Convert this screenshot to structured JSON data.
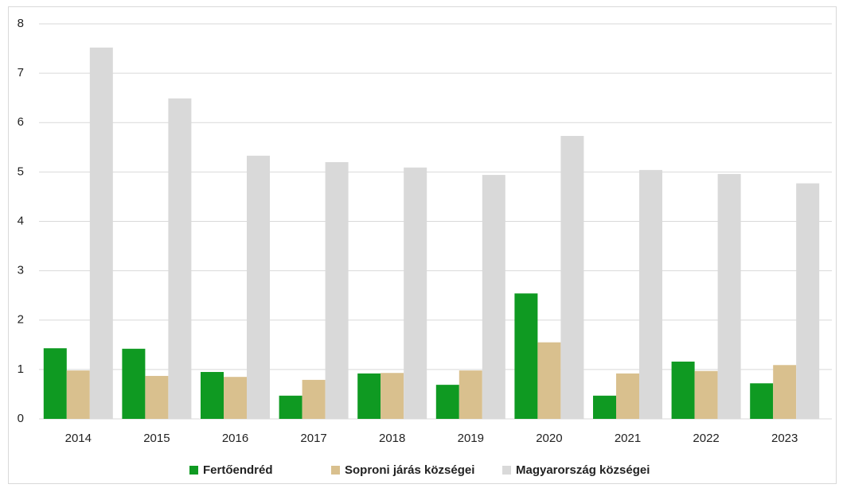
{
  "chart_data": {
    "type": "bar",
    "categories": [
      "2014",
      "2015",
      "2016",
      "2017",
      "2018",
      "2019",
      "2020",
      "2021",
      "2022",
      "2023"
    ],
    "series": [
      {
        "name": "Fertőendréd",
        "color": "#0f9a22",
        "values": [
          1.43,
          1.42,
          0.95,
          0.47,
          0.92,
          0.69,
          2.54,
          0.47,
          1.16,
          0.72
        ]
      },
      {
        "name": "Soproni járás községei",
        "color": "#d9c08e",
        "values": [
          0.98,
          0.87,
          0.85,
          0.79,
          0.93,
          0.98,
          1.55,
          0.92,
          0.97,
          1.09
        ]
      },
      {
        "name": "Magyarország községei",
        "color": "#d9d9d9",
        "values": [
          7.52,
          6.49,
          5.33,
          5.2,
          5.09,
          4.94,
          5.73,
          5.04,
          4.96,
          4.77
        ]
      }
    ],
    "ylim": [
      0,
      8
    ],
    "yticks": [
      0,
      1,
      2,
      3,
      4,
      5,
      6,
      7,
      8
    ],
    "grid": true,
    "legend": "bottom"
  }
}
